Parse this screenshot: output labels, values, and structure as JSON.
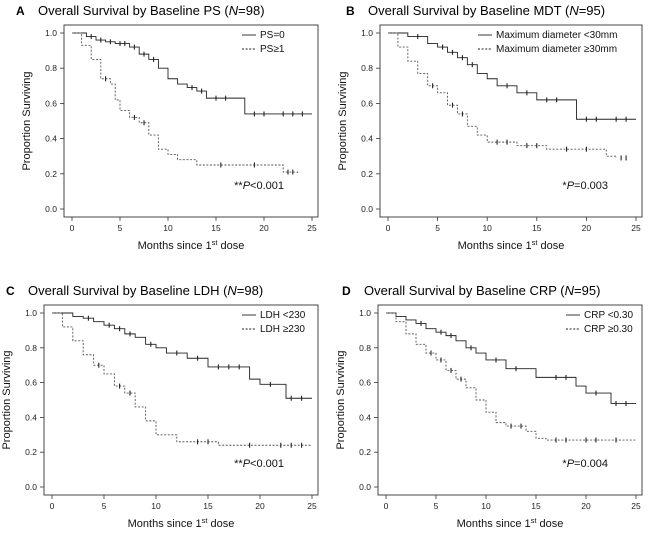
{
  "chart_data": [
    {
      "type": "line",
      "panel_label": "A",
      "title": "Overall Survival by Baseline PS",
      "n_label": "N",
      "n_value": "=98)",
      "xlabel": "Months since 1st dose",
      "xlabel_main": "Months since 1",
      "xlabel_sup": "st",
      "xlabel_tail": " dose",
      "ylabel": "Proportion Surviving",
      "xlim": [
        0,
        25
      ],
      "ylim": [
        0,
        1.0
      ],
      "xticks": [
        "0",
        "5",
        "10",
        "15",
        "20",
        "25"
      ],
      "yticks": [
        "0.0",
        "0.2",
        "0.4",
        "0.6",
        "0.8",
        "1.0"
      ],
      "legend_position": "top-right",
      "pvalue_prefix": "**",
      "pvalue_text": "P<0.001",
      "series": [
        {
          "name": "PS=0",
          "style": "solid",
          "x": [
            0,
            1.5,
            2.5,
            3.5,
            4.5,
            6,
            7,
            8,
            9,
            10,
            11,
            12,
            13,
            14,
            17,
            18,
            25
          ],
          "y": [
            1.0,
            0.98,
            0.96,
            0.95,
            0.94,
            0.92,
            0.88,
            0.85,
            0.8,
            0.74,
            0.71,
            0.69,
            0.67,
            0.63,
            0.63,
            0.54,
            0.54
          ],
          "censor_x": [
            2,
            3,
            4,
            5,
            5.5,
            6.5,
            7.5,
            8.5,
            12.5,
            13.5,
            15,
            16,
            19,
            20,
            22,
            23,
            24
          ],
          "censor_y": [
            0.98,
            0.96,
            0.95,
            0.94,
            0.94,
            0.92,
            0.88,
            0.85,
            0.69,
            0.67,
            0.63,
            0.63,
            0.54,
            0.54,
            0.54,
            0.54,
            0.54
          ]
        },
        {
          "name": "PS≥1",
          "style": "dashed",
          "x": [
            0,
            1,
            2,
            3,
            4,
            4.5,
            5,
            6,
            7,
            8,
            9,
            10,
            11,
            13,
            15,
            22,
            23.5
          ],
          "y": [
            1.0,
            0.93,
            0.85,
            0.74,
            0.71,
            0.62,
            0.56,
            0.52,
            0.49,
            0.42,
            0.34,
            0.31,
            0.28,
            0.25,
            0.25,
            0.21,
            0.2
          ],
          "censor_x": [
            3.5,
            6.5,
            7.5,
            15.5,
            19,
            22.5,
            23
          ],
          "censor_y": [
            0.74,
            0.52,
            0.49,
            0.25,
            0.25,
            0.21,
            0.21
          ]
        }
      ]
    },
    {
      "type": "line",
      "panel_label": "B",
      "title": "Overall Survival by Baseline MDT",
      "n_label": "N",
      "n_value": "=95)",
      "xlabel": "Months since 1st dose",
      "xlabel_main": "Months since 1",
      "xlabel_sup": "st",
      "xlabel_tail": " dose",
      "ylabel": "Proportion Surviving",
      "xlim": [
        0,
        25
      ],
      "ylim": [
        0,
        1.0
      ],
      "xticks": [
        "0",
        "5",
        "10",
        "15",
        "20",
        "25"
      ],
      "yticks": [
        "0.0",
        "0.2",
        "0.4",
        "0.6",
        "0.8",
        "1.0"
      ],
      "legend_position": "top-right",
      "pvalue_prefix": "*",
      "pvalue_text": "P=0.003",
      "series": [
        {
          "name": "Maximum diameter <30mm",
          "style": "solid",
          "x": [
            0,
            2,
            4,
            5,
            6,
            7,
            8,
            9,
            10,
            11,
            13,
            15,
            18,
            19,
            25
          ],
          "y": [
            1.0,
            0.98,
            0.94,
            0.92,
            0.89,
            0.86,
            0.82,
            0.77,
            0.74,
            0.7,
            0.66,
            0.62,
            0.62,
            0.51,
            0.51
          ],
          "censor_x": [
            3,
            5.5,
            6.5,
            7.5,
            8.5,
            12,
            14,
            16,
            17,
            20,
            21,
            23,
            24
          ],
          "censor_y": [
            0.98,
            0.92,
            0.89,
            0.86,
            0.82,
            0.7,
            0.66,
            0.62,
            0.62,
            0.51,
            0.51,
            0.51,
            0.51
          ]
        },
        {
          "name": "Maximum diameter ≥30mm",
          "style": "dashed",
          "x": [
            0,
            1,
            2,
            3,
            4,
            5,
            6,
            7,
            8,
            9,
            10,
            13,
            16,
            22,
            23
          ],
          "y": [
            1.0,
            0.92,
            0.84,
            0.77,
            0.7,
            0.66,
            0.59,
            0.54,
            0.47,
            0.42,
            0.38,
            0.36,
            0.34,
            0.3,
            0.29
          ],
          "censor_x": [
            4.5,
            6.5,
            7.5,
            11,
            12,
            14,
            15,
            18,
            20,
            23.5,
            24
          ],
          "censor_y": [
            0.7,
            0.59,
            0.54,
            0.38,
            0.38,
            0.36,
            0.36,
            0.34,
            0.34,
            0.29,
            0.29
          ]
        }
      ]
    },
    {
      "type": "line",
      "panel_label": "C",
      "title": "Overall Survival by Baseline LDH",
      "n_label": "N",
      "n_value": "=98)",
      "xlabel": "Months since 1st dose",
      "xlabel_main": "Months since 1",
      "xlabel_sup": "st",
      "xlabel_tail": " dose",
      "ylabel": "Proportion Surviving",
      "xlim": [
        0,
        25
      ],
      "ylim": [
        0,
        1.0
      ],
      "xticks": [
        "0",
        "5",
        "10",
        "15",
        "20",
        "25"
      ],
      "yticks": [
        "0.0",
        "0.2",
        "0.4",
        "0.6",
        "0.8",
        "1.0"
      ],
      "legend_position": "top-right",
      "pvalue_prefix": "**",
      "pvalue_text": "P<0.001",
      "series": [
        {
          "name": "LDH <230",
          "style": "solid",
          "x": [
            0,
            2,
            3,
            4,
            5,
            6,
            7,
            8,
            9,
            10,
            11,
            13,
            15,
            19,
            20,
            22.5,
            25
          ],
          "y": [
            1.0,
            0.98,
            0.97,
            0.95,
            0.93,
            0.91,
            0.88,
            0.86,
            0.82,
            0.8,
            0.77,
            0.74,
            0.69,
            0.62,
            0.59,
            0.51,
            0.51
          ],
          "censor_x": [
            3.5,
            5.5,
            6.5,
            7.5,
            9.5,
            12,
            14,
            16,
            17,
            18,
            21,
            23,
            24
          ],
          "censor_y": [
            0.97,
            0.93,
            0.91,
            0.88,
            0.82,
            0.77,
            0.74,
            0.69,
            0.69,
            0.69,
            0.59,
            0.51,
            0.51
          ]
        },
        {
          "name": "LDH ≥230",
          "style": "dashed",
          "x": [
            0,
            1,
            2,
            3,
            4,
            5,
            6,
            7,
            8,
            9,
            10,
            12,
            16,
            25
          ],
          "y": [
            1.0,
            0.92,
            0.84,
            0.76,
            0.7,
            0.65,
            0.58,
            0.54,
            0.46,
            0.38,
            0.3,
            0.26,
            0.24,
            0.24
          ],
          "censor_x": [
            4.5,
            6.5,
            7.5,
            14,
            15,
            19,
            22,
            23,
            24
          ],
          "censor_y": [
            0.7,
            0.58,
            0.54,
            0.26,
            0.26,
            0.24,
            0.24,
            0.24,
            0.24
          ]
        }
      ]
    },
    {
      "type": "line",
      "panel_label": "D",
      "title": "Overall Survival by Baseline CRP",
      "n_label": "N",
      "n_value": "=95)",
      "xlabel": "Months since 1st dose",
      "xlabel_main": "Months since 1",
      "xlabel_sup": "st",
      "xlabel_tail": " dose",
      "ylabel": "Proportion Surviving",
      "xlim": [
        0,
        25
      ],
      "ylim": [
        0,
        1.0
      ],
      "xticks": [
        "0",
        "5",
        "10",
        "15",
        "20",
        "25"
      ],
      "yticks": [
        "0.0",
        "0.2",
        "0.4",
        "0.6",
        "0.8",
        "1.0"
      ],
      "legend_position": "top-right",
      "pvalue_prefix": "*",
      "pvalue_text": "P=0.004",
      "series": [
        {
          "name": "CRP <0.30",
          "style": "solid",
          "x": [
            0,
            1,
            2,
            3,
            4,
            5,
            6,
            7,
            8,
            9,
            10,
            12,
            15,
            19,
            20,
            22.5,
            25
          ],
          "y": [
            1.0,
            0.98,
            0.96,
            0.94,
            0.91,
            0.89,
            0.87,
            0.84,
            0.8,
            0.77,
            0.73,
            0.68,
            0.63,
            0.58,
            0.54,
            0.48,
            0.48
          ],
          "censor_x": [
            3.5,
            5.5,
            6.5,
            8.5,
            11,
            13,
            17,
            18,
            21,
            23,
            24
          ],
          "censor_y": [
            0.94,
            0.89,
            0.87,
            0.8,
            0.73,
            0.68,
            0.63,
            0.63,
            0.54,
            0.48,
            0.48
          ]
        },
        {
          "name": "CRP ≥0.30",
          "style": "dashed",
          "x": [
            0,
            1,
            2,
            3,
            4,
            5,
            6,
            7,
            8,
            9,
            10,
            11,
            12,
            14,
            15,
            16,
            25
          ],
          "y": [
            1.0,
            0.95,
            0.88,
            0.82,
            0.77,
            0.73,
            0.67,
            0.62,
            0.57,
            0.5,
            0.43,
            0.37,
            0.35,
            0.32,
            0.28,
            0.27,
            0.27
          ],
          "censor_x": [
            4.5,
            5.5,
            6.5,
            7.5,
            12.5,
            13.5,
            17,
            18,
            20,
            21,
            23
          ],
          "censor_y": [
            0.77,
            0.73,
            0.67,
            0.62,
            0.35,
            0.35,
            0.27,
            0.27,
            0.27,
            0.27,
            0.27
          ]
        }
      ]
    }
  ]
}
